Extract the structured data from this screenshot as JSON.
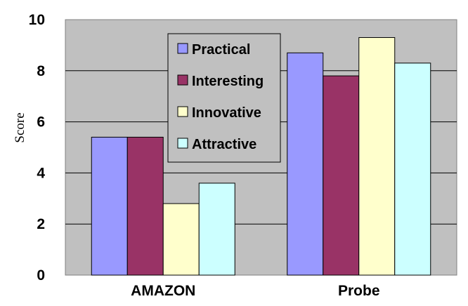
{
  "chart_data": {
    "type": "bar",
    "categories": [
      "AMAZON",
      "Probe"
    ],
    "series": [
      {
        "name": "Practical",
        "color": "#9999ff",
        "values": [
          5.4,
          8.7
        ]
      },
      {
        "name": "Interesting",
        "color": "#993366",
        "values": [
          5.4,
          7.8
        ]
      },
      {
        "name": "Innovative",
        "color": "#ffffcc",
        "values": [
          2.8,
          9.3
        ]
      },
      {
        "name": "Attractive",
        "color": "#ccffff",
        "values": [
          3.6,
          8.3
        ]
      }
    ],
    "ylabel": "Score",
    "ylim": [
      0,
      10
    ],
    "yticks": [
      0,
      2,
      4,
      6,
      8,
      10
    ],
    "grid": true,
    "legend_position": "top-center",
    "plot_background": "#c0c0c0"
  }
}
